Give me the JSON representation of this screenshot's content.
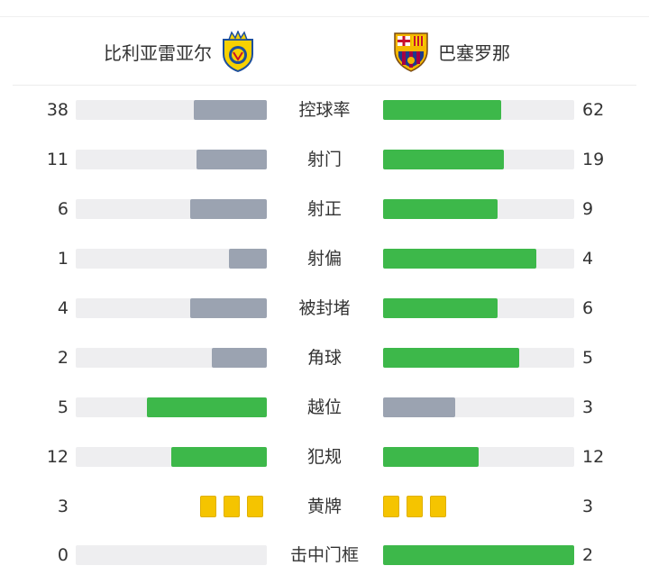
{
  "teams": {
    "home": {
      "name": "比利亚雷亚尔",
      "crest": "villarreal-crest-icon"
    },
    "away": {
      "name": "巴塞罗那",
      "crest": "barcelona-crest-icon"
    }
  },
  "colors": {
    "leader": "#3db84a",
    "trailer": "#9ba3b1",
    "track": "#eeeef0",
    "card": "#f5c400"
  },
  "stats": [
    {
      "label": "控球率",
      "home": "38",
      "away": "62"
    },
    {
      "label": "射门",
      "home": "11",
      "away": "19"
    },
    {
      "label": "射正",
      "home": "6",
      "away": "9"
    },
    {
      "label": "射偏",
      "home": "1",
      "away": "4"
    },
    {
      "label": "被封堵",
      "home": "4",
      "away": "6"
    },
    {
      "label": "角球",
      "home": "2",
      "away": "5"
    },
    {
      "label": "越位",
      "home": "5",
      "away": "3"
    },
    {
      "label": "犯规",
      "home": "12",
      "away": "12"
    },
    {
      "label": "黄牌",
      "home": "3",
      "away": "3",
      "type": "cards"
    },
    {
      "label": "击中门框",
      "home": "0",
      "away": "2"
    }
  ]
}
